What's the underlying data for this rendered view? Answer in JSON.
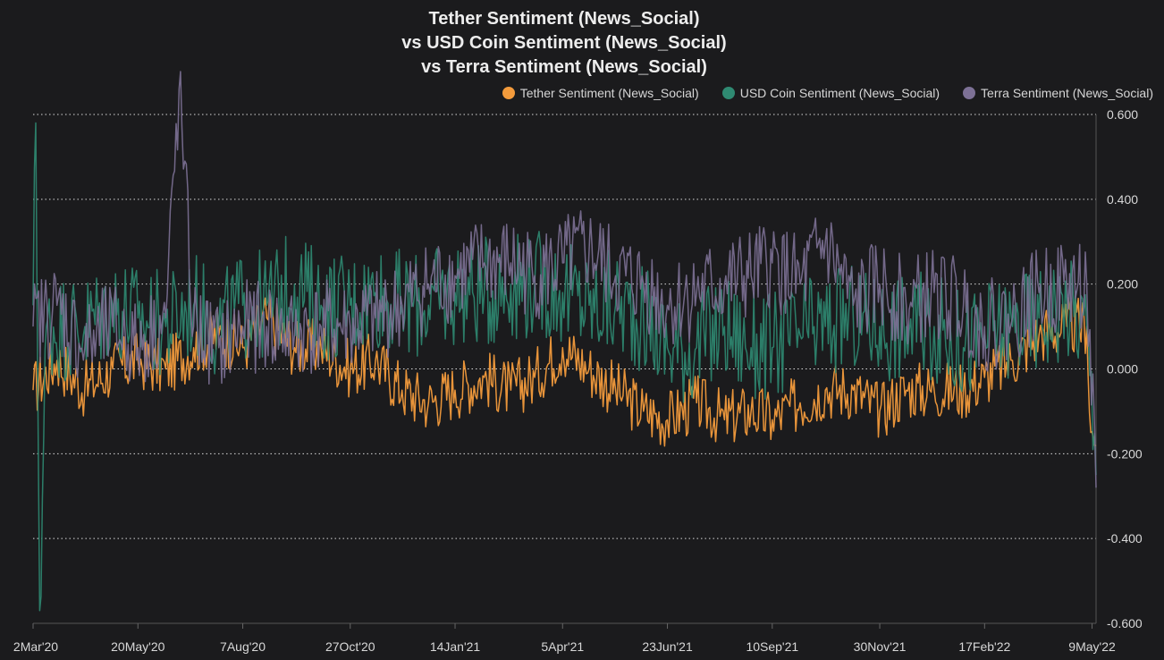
{
  "chart_data": {
    "type": "line",
    "title_lines": [
      "Tether Sentiment (News_Social)",
      "vs USD Coin Sentiment (News_Social)",
      "vs Terra Sentiment (News_Social)"
    ],
    "xlabel": "",
    "ylabel": "",
    "x_start": "2020-03-02",
    "x_end": "2022-05-12",
    "x_ticks": [
      {
        "date": "2020-03-02",
        "label": "2Mar'20"
      },
      {
        "date": "2020-05-20",
        "label": "20May'20"
      },
      {
        "date": "2020-08-07",
        "label": "7Aug'20"
      },
      {
        "date": "2020-10-27",
        "label": "27Oct'20"
      },
      {
        "date": "2021-01-14",
        "label": "14Jan'21"
      },
      {
        "date": "2021-04-05",
        "label": "5Apr'21"
      },
      {
        "date": "2021-06-23",
        "label": "23Jun'21"
      },
      {
        "date": "2021-09-10",
        "label": "10Sep'21"
      },
      {
        "date": "2021-11-30",
        "label": "30Nov'21"
      },
      {
        "date": "2022-02-17",
        "label": "17Feb'22"
      },
      {
        "date": "2022-05-09",
        "label": "9May'22"
      }
    ],
    "ylim": [
      -0.6,
      0.6
    ],
    "y_ticks": [
      0.6,
      0.4,
      0.2,
      0.0,
      -0.2,
      -0.4,
      -0.6
    ],
    "y_tick_labels": [
      "0.600",
      "0.400",
      "0.200",
      "0.000",
      "-0.200",
      "-0.400",
      "-0.600"
    ],
    "y_axis_position": "right",
    "grid": "horizontal dotted",
    "legend_position": "top-right",
    "series": [
      {
        "name": "Tether Sentiment (News_Social)",
        "color": "#f39b3c",
        "points": [
          [
            "2020-03-02",
            -0.05
          ],
          [
            "2020-03-20",
            0.02
          ],
          [
            "2020-04-10",
            -0.05
          ],
          [
            "2020-05-01",
            0.0
          ],
          [
            "2020-05-20",
            0.02
          ],
          [
            "2020-06-10",
            0.0
          ],
          [
            "2020-07-01",
            0.05
          ],
          [
            "2020-07-20",
            0.08
          ],
          [
            "2020-08-07",
            0.05
          ],
          [
            "2020-08-25",
            0.12
          ],
          [
            "2020-09-15",
            0.05
          ],
          [
            "2020-10-05",
            0.05
          ],
          [
            "2020-10-27",
            0.0
          ],
          [
            "2020-11-15",
            0.02
          ],
          [
            "2020-12-05",
            -0.05
          ],
          [
            "2020-12-25",
            -0.08
          ],
          [
            "2021-01-14",
            -0.05
          ],
          [
            "2021-02-05",
            -0.02
          ],
          [
            "2021-02-25",
            -0.05
          ],
          [
            "2021-03-15",
            -0.02
          ],
          [
            "2021-04-05",
            0.05
          ],
          [
            "2021-04-25",
            0.0
          ],
          [
            "2021-05-15",
            -0.05
          ],
          [
            "2021-06-05",
            -0.1
          ],
          [
            "2021-06-23",
            -0.12
          ],
          [
            "2021-07-15",
            -0.08
          ],
          [
            "2021-08-05",
            -0.12
          ],
          [
            "2021-08-25",
            -0.1
          ],
          [
            "2021-09-10",
            -0.12
          ],
          [
            "2021-10-01",
            -0.08
          ],
          [
            "2021-10-20",
            -0.05
          ],
          [
            "2021-11-10",
            -0.05
          ],
          [
            "2021-11-30",
            -0.1
          ],
          [
            "2021-12-20",
            -0.05
          ],
          [
            "2022-01-10",
            -0.05
          ],
          [
            "2022-02-01",
            -0.05
          ],
          [
            "2022-02-17",
            -0.02
          ],
          [
            "2022-03-10",
            0.02
          ],
          [
            "2022-03-30",
            0.08
          ],
          [
            "2022-04-20",
            0.1
          ],
          [
            "2022-05-05",
            0.1
          ],
          [
            "2022-05-08",
            -0.15
          ],
          [
            "2022-05-12",
            -0.18
          ]
        ]
      },
      {
        "name": "USD Coin Sentiment (News_Social)",
        "color": "#2f8a72",
        "points": [
          [
            "2020-03-02",
            0.15
          ],
          [
            "2020-03-04",
            0.58
          ],
          [
            "2020-03-07",
            -0.57
          ],
          [
            "2020-03-12",
            0.1
          ],
          [
            "2020-04-10",
            0.1
          ],
          [
            "2020-05-01",
            0.15
          ],
          [
            "2020-05-20",
            0.12
          ],
          [
            "2020-06-10",
            0.1
          ],
          [
            "2020-07-01",
            0.15
          ],
          [
            "2020-07-20",
            0.1
          ],
          [
            "2020-08-07",
            0.15
          ],
          [
            "2020-08-25",
            0.15
          ],
          [
            "2020-09-15",
            0.2
          ],
          [
            "2020-10-05",
            0.15
          ],
          [
            "2020-10-27",
            0.15
          ],
          [
            "2020-11-15",
            0.18
          ],
          [
            "2020-12-05",
            0.15
          ],
          [
            "2020-12-25",
            0.15
          ],
          [
            "2021-01-14",
            0.18
          ],
          [
            "2021-02-05",
            0.18
          ],
          [
            "2021-02-25",
            0.2
          ],
          [
            "2021-03-15",
            0.2
          ],
          [
            "2021-04-05",
            0.18
          ],
          [
            "2021-04-25",
            0.15
          ],
          [
            "2021-05-15",
            0.15
          ],
          [
            "2021-06-05",
            0.12
          ],
          [
            "2021-06-23",
            0.05
          ],
          [
            "2021-07-15",
            0.05
          ],
          [
            "2021-08-05",
            0.1
          ],
          [
            "2021-08-25",
            0.05
          ],
          [
            "2021-09-10",
            0.05
          ],
          [
            "2021-10-01",
            0.08
          ],
          [
            "2021-10-20",
            0.1
          ],
          [
            "2021-11-10",
            0.12
          ],
          [
            "2021-11-30",
            0.1
          ],
          [
            "2021-12-20",
            0.1
          ],
          [
            "2022-01-10",
            0.1
          ],
          [
            "2022-02-01",
            0.05
          ],
          [
            "2022-02-17",
            0.08
          ],
          [
            "2022-03-10",
            0.1
          ],
          [
            "2022-03-30",
            0.12
          ],
          [
            "2022-04-20",
            0.15
          ],
          [
            "2022-05-05",
            0.1
          ],
          [
            "2022-05-12",
            -0.25
          ]
        ]
      },
      {
        "name": "Terra Sentiment (News_Social)",
        "color": "#7d7196",
        "points": [
          [
            "2020-03-02",
            0.1
          ],
          [
            "2020-03-20",
            0.15
          ],
          [
            "2020-04-10",
            0.05
          ],
          [
            "2020-05-01",
            0.1
          ],
          [
            "2020-05-20",
            0.05
          ],
          [
            "2020-06-10",
            0.12
          ],
          [
            "2020-06-20",
            0.66
          ],
          [
            "2020-07-01",
            0.1
          ],
          [
            "2020-07-20",
            0.05
          ],
          [
            "2020-08-07",
            0.1
          ],
          [
            "2020-08-25",
            0.1
          ],
          [
            "2020-09-15",
            0.08
          ],
          [
            "2020-10-05",
            0.1
          ],
          [
            "2020-10-27",
            0.1
          ],
          [
            "2020-11-15",
            0.12
          ],
          [
            "2020-12-05",
            0.15
          ],
          [
            "2020-12-25",
            0.2
          ],
          [
            "2021-01-14",
            0.22
          ],
          [
            "2021-02-05",
            0.25
          ],
          [
            "2021-02-25",
            0.25
          ],
          [
            "2021-03-15",
            0.22
          ],
          [
            "2021-04-05",
            0.25
          ],
          [
            "2021-04-25",
            0.28
          ],
          [
            "2021-05-15",
            0.22
          ],
          [
            "2021-06-05",
            0.2
          ],
          [
            "2021-06-23",
            0.15
          ],
          [
            "2021-07-15",
            0.18
          ],
          [
            "2021-08-05",
            0.2
          ],
          [
            "2021-08-25",
            0.22
          ],
          [
            "2021-09-10",
            0.25
          ],
          [
            "2021-10-01",
            0.2
          ],
          [
            "2021-10-20",
            0.3
          ],
          [
            "2021-11-10",
            0.15
          ],
          [
            "2021-11-30",
            0.2
          ],
          [
            "2021-12-20",
            0.15
          ],
          [
            "2022-01-10",
            0.18
          ],
          [
            "2022-02-01",
            0.15
          ],
          [
            "2022-02-17",
            0.1
          ],
          [
            "2022-03-10",
            0.12
          ],
          [
            "2022-03-30",
            0.18
          ],
          [
            "2022-04-20",
            0.2
          ],
          [
            "2022-05-05",
            0.2
          ],
          [
            "2022-05-12",
            -0.28
          ]
        ]
      }
    ]
  }
}
